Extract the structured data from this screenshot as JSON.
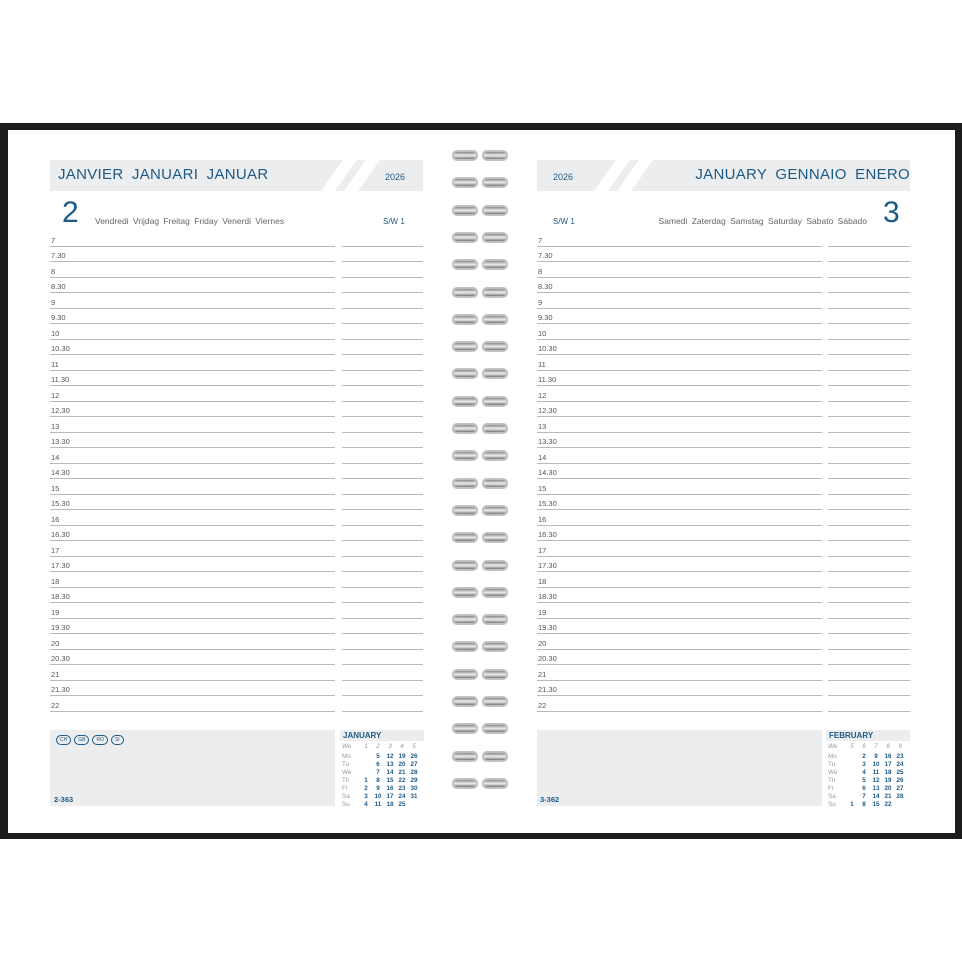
{
  "left": {
    "month_title": "JANVIER  JANUARI  JANUAR",
    "year": "2026",
    "day_number": "2",
    "day_names": "Vendredi Vrijdag Freitag Friday Venerdi Viernes",
    "week": "S/W 1",
    "badges": [
      "CH",
      "GB",
      "RO",
      "SI"
    ],
    "page_number": "2-363",
    "calendar": {
      "title": "JANUARY",
      "header": [
        "We",
        "1",
        "2",
        "3",
        "4",
        "5"
      ],
      "rows": [
        [
          "Mo",
          "",
          "5",
          "12",
          "19",
          "26"
        ],
        [
          "Tu",
          "",
          "6",
          "13",
          "20",
          "27"
        ],
        [
          "We",
          "",
          "7",
          "14",
          "21",
          "28"
        ],
        [
          "Th",
          "1",
          "8",
          "15",
          "22",
          "29"
        ],
        [
          "Fr",
          "2",
          "9",
          "16",
          "23",
          "30"
        ],
        [
          "Sa",
          "3",
          "10",
          "17",
          "24",
          "31"
        ],
        [
          "Su",
          "4",
          "11",
          "18",
          "25",
          ""
        ]
      ]
    }
  },
  "right": {
    "month_title": "JANUARY  GENNAIO  ENERO",
    "year": "2026",
    "day_number": "3",
    "day_names": "Samedi Zaterdag Samstag Saturday Sabato Sábado",
    "week": "S/W 1",
    "page_number": "3-362",
    "calendar": {
      "title": "FEBRUARY",
      "header": [
        "We",
        "5",
        "6",
        "7",
        "8",
        "9"
      ],
      "rows": [
        [
          "Mo",
          "",
          "2",
          "9",
          "16",
          "23"
        ],
        [
          "Tu",
          "",
          "3",
          "10",
          "17",
          "24"
        ],
        [
          "We",
          "",
          "4",
          "11",
          "18",
          "25"
        ],
        [
          "Th",
          "",
          "5",
          "12",
          "19",
          "26"
        ],
        [
          "Fr",
          "",
          "6",
          "13",
          "20",
          "27"
        ],
        [
          "Sa",
          "",
          "7",
          "14",
          "21",
          "28"
        ],
        [
          "Su",
          "1",
          "8",
          "15",
          "22",
          ""
        ]
      ]
    }
  },
  "times": [
    "7",
    "7.30",
    "8",
    "8.30",
    "9",
    "9.30",
    "10",
    "10.30",
    "11",
    "11.30",
    "12",
    "12.30",
    "13",
    "13.30",
    "14",
    "14.30",
    "15",
    "15.30",
    "16",
    "16.30",
    "17",
    "17.30",
    "18",
    "18.30",
    "19",
    "19.30",
    "20",
    "20.30",
    "21",
    "21.30",
    "22"
  ],
  "colors": {
    "accent": "#1d5a86",
    "band": "#ecedee",
    "cover": "#1c1c1c"
  }
}
